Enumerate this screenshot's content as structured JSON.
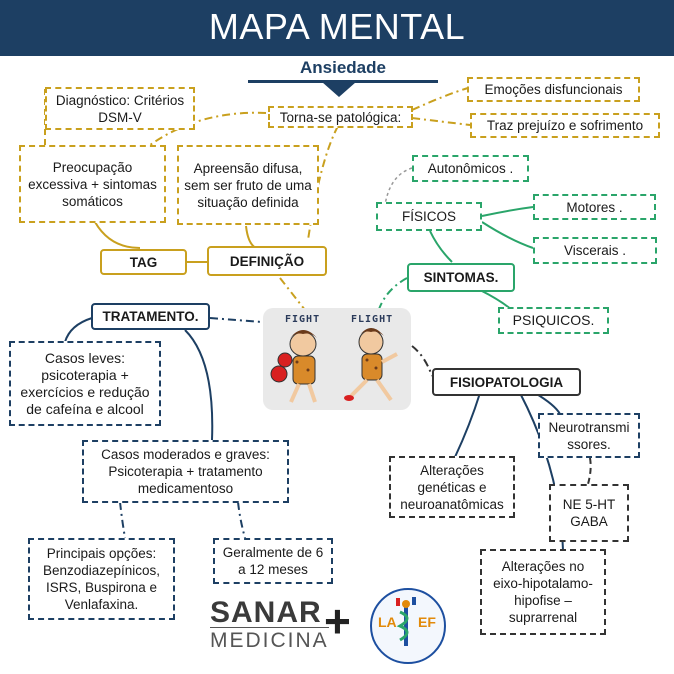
{
  "header": {
    "title": "MAPA MENTAL",
    "subtitle": "Ansiedade"
  },
  "nodes": {
    "torna_se": "Torna-se patológica:",
    "emocoes": "Emoções disfuncionais",
    "prejuizo": "Traz prejuízo e sofrimento",
    "diagnostico": "Diagnóstico: Critérios DSM-V",
    "preocupacao": "Preocupação excessiva + sintomas somáticos",
    "apreensao": "Apreensão difusa, sem ser fruto de uma situação definida",
    "tag": "TAG",
    "definicao": "DEFINIÇÃO",
    "autonomicos": "Autonômicos .",
    "fisicos": "FÍSICOS",
    "motores": "Motores .",
    "viscerais": "Viscerais .",
    "sintomas": "SINTOMAS.",
    "psiquicos": "PSIQUICOS.",
    "tratamento": "TRATAMENTO.",
    "casos_leves": "Casos leves: psicoterapia + exercícios e redução de cafeína e alcool",
    "casos_moderados": "Casos moderados e graves: Psicoterapia + tratamento medicamentoso",
    "principais": "Principais opções: Benzodiazepínicos, ISRS, Buspirona e Venlafaxina.",
    "geralmente": "Geralmente de 6 a 12 meses",
    "fisiopatologia": "FISIOPATOLOGIA",
    "alteracoes_geneticas": "Alterações genéticas e neuroanatômicas",
    "neurotransmissores": "Neurotransmi ssores.",
    "ne_5ht_gaba": "NE 5-HT GABA",
    "eixo": "Alterações no eixo-hipotalamo-hipofise – suprarrenal"
  },
  "illustration": {
    "left_word": "FIGHT",
    "right_word": "FLIGHT"
  },
  "footer": {
    "brand_top": "SANAR",
    "brand_bottom": "MEDICINA",
    "plus": "+",
    "logo_text_left": "LA",
    "logo_text_right": "EF"
  },
  "colors": {
    "navy": "#1d3f63",
    "gold": "#c9a01e",
    "green": "#2aa56a",
    "dark": "#333333"
  }
}
